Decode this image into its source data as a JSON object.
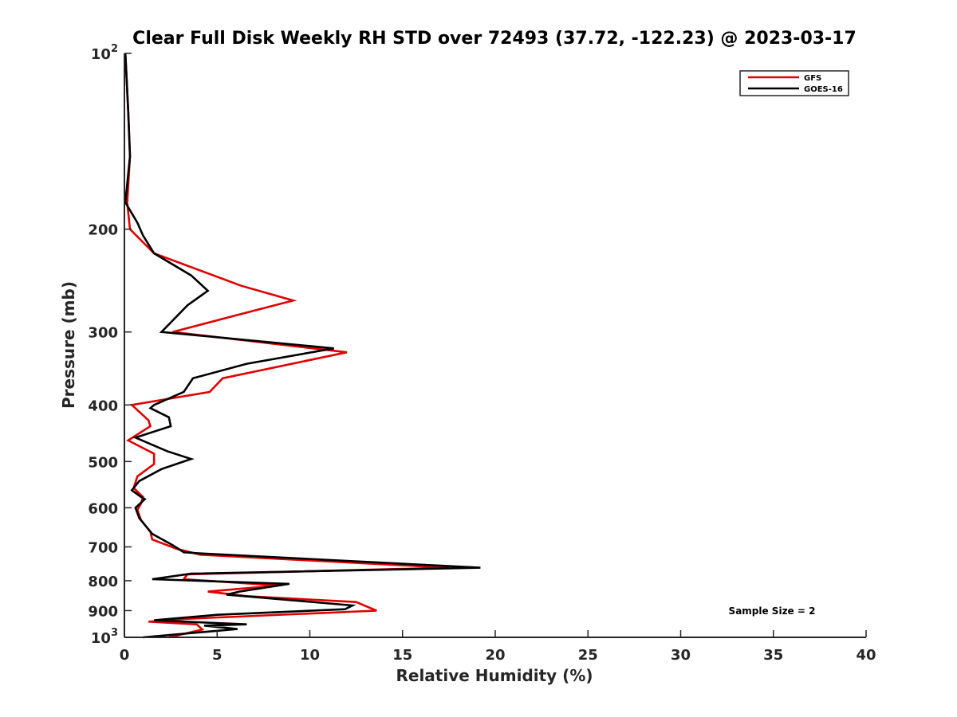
{
  "chart_data": {
    "type": "line",
    "title": "Clear Full Disk Weekly RH STD over 72493 (37.72, -122.23) @ 2023-03-17",
    "xlabel": "Relative Humidity (%)",
    "ylabel": "Pressure (mb)",
    "xlim": [
      0,
      40
    ],
    "ylim": [
      1000,
      100
    ],
    "y_scale": "log",
    "y_reversed": true,
    "grid": false,
    "legend_position": "top-right",
    "annotation": "Sample Size = 2",
    "x_ticks": [
      "0",
      "5",
      "10",
      "15",
      "20",
      "25",
      "30",
      "35",
      "40"
    ],
    "y_ticks": [
      {
        "value": 100,
        "label": "10",
        "sup": "2"
      },
      {
        "value": 200,
        "label": "200",
        "sup": ""
      },
      {
        "value": 300,
        "label": "300",
        "sup": ""
      },
      {
        "value": 400,
        "label": "400",
        "sup": ""
      },
      {
        "value": 500,
        "label": "500",
        "sup": ""
      },
      {
        "value": 600,
        "label": "600",
        "sup": ""
      },
      {
        "value": 700,
        "label": "700",
        "sup": ""
      },
      {
        "value": 800,
        "label": "800",
        "sup": ""
      },
      {
        "value": 900,
        "label": "900",
        "sup": ""
      },
      {
        "value": 1000,
        "label": "10",
        "sup": "3"
      }
    ],
    "series": [
      {
        "name": "GFS",
        "color": "#e00000",
        "points": [
          [
            0.05,
            100
          ],
          [
            0.2,
            125
          ],
          [
            0.3,
            150
          ],
          [
            0.15,
            180
          ],
          [
            0.3,
            200
          ],
          [
            1.6,
            220
          ],
          [
            6.3,
            250
          ],
          [
            9.1,
            265
          ],
          [
            6.2,
            280
          ],
          [
            2.6,
            300
          ],
          [
            12.0,
            325
          ],
          [
            5.3,
            360
          ],
          [
            4.6,
            380
          ],
          [
            0.4,
            400
          ],
          [
            1.3,
            425
          ],
          [
            1.4,
            435
          ],
          [
            0.2,
            460
          ],
          [
            1.6,
            485
          ],
          [
            1.6,
            505
          ],
          [
            0.7,
            530
          ],
          [
            0.5,
            555
          ],
          [
            1.0,
            575
          ],
          [
            0.9,
            590
          ],
          [
            0.7,
            605
          ],
          [
            0.9,
            630
          ],
          [
            1.4,
            660
          ],
          [
            1.5,
            680
          ],
          [
            2.8,
            705
          ],
          [
            4.1,
            722
          ],
          [
            17.5,
            760
          ],
          [
            3.4,
            780
          ],
          [
            3.2,
            795
          ],
          [
            8.3,
            815
          ],
          [
            4.5,
            835
          ],
          [
            6.6,
            850
          ],
          [
            12.5,
            870
          ],
          [
            13.6,
            900
          ],
          [
            3.2,
            930
          ],
          [
            1.3,
            940
          ],
          [
            3.9,
            950
          ],
          [
            4.2,
            970
          ],
          [
            2.4,
            1000
          ]
        ]
      },
      {
        "name": "GOES-16",
        "color": "#000000",
        "points": [
          [
            0.05,
            100
          ],
          [
            0.2,
            125
          ],
          [
            0.3,
            150
          ],
          [
            0.05,
            180
          ],
          [
            0.7,
            195
          ],
          [
            1.0,
            205
          ],
          [
            1.6,
            220
          ],
          [
            3.6,
            240
          ],
          [
            4.5,
            255
          ],
          [
            3.4,
            270
          ],
          [
            2.0,
            300
          ],
          [
            11.3,
            320
          ],
          [
            6.6,
            340
          ],
          [
            3.7,
            360
          ],
          [
            3.2,
            380
          ],
          [
            1.6,
            400
          ],
          [
            1.4,
            405
          ],
          [
            2.4,
            420
          ],
          [
            2.5,
            435
          ],
          [
            0.6,
            455
          ],
          [
            2.3,
            480
          ],
          [
            3.6,
            495
          ],
          [
            2.0,
            515
          ],
          [
            0.8,
            540
          ],
          [
            0.6,
            550
          ],
          [
            0.4,
            560
          ],
          [
            0.9,
            575
          ],
          [
            1.1,
            580
          ],
          [
            0.6,
            600
          ],
          [
            0.8,
            625
          ],
          [
            1.5,
            665
          ],
          [
            2.6,
            695
          ],
          [
            3.2,
            715
          ],
          [
            4.0,
            718
          ],
          [
            19.2,
            760
          ],
          [
            3.6,
            778
          ],
          [
            1.5,
            795
          ],
          [
            8.9,
            810
          ],
          [
            6.2,
            835
          ],
          [
            5.5,
            845
          ],
          [
            12.3,
            882
          ],
          [
            11.9,
            895
          ],
          [
            5.0,
            915
          ],
          [
            1.6,
            935
          ],
          [
            6.6,
            950
          ],
          [
            4.3,
            955
          ],
          [
            6.1,
            968
          ],
          [
            1.0,
            1000
          ]
        ]
      }
    ]
  }
}
